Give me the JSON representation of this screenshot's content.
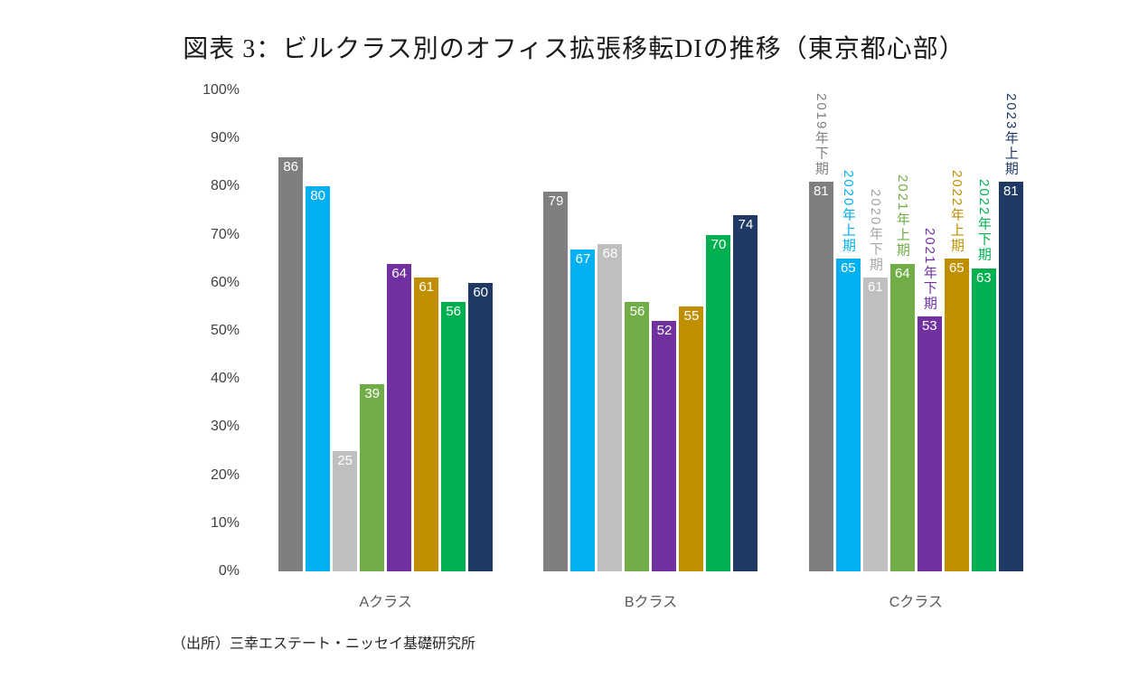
{
  "title": "図表 3：ビルクラス別のオフィス拡張移転DIの推移（東京都心部）",
  "source": "（出所）三幸エステート・ニッセイ基礎研究所",
  "chart_data": {
    "type": "bar",
    "title": "図表 3：ビルクラス別のオフィス拡張移転DIの推移（東京都心部）",
    "xlabel": "",
    "ylabel": "",
    "ylim": [
      0,
      100
    ],
    "grid": false,
    "legend_position": "rotated series labels above Cクラス bars",
    "value_labels": "white, inside top of each bar",
    "y_tick_labels": [
      "100%",
      "90%",
      "80%",
      "70%",
      "60%",
      "50%",
      "40%",
      "30%",
      "20%",
      "10%",
      "0%"
    ],
    "categories": [
      "Aクラス",
      "Bクラス",
      "Cクラス"
    ],
    "series_label_category": "Cクラス",
    "series": [
      {
        "name": "2019年下期",
        "color": "#7F7F7F",
        "label_color": "#7F7F7F",
        "values": [
          86,
          79,
          81
        ]
      },
      {
        "name": "2020年上期",
        "color": "#00B0F0",
        "label_color": "#00B0F0",
        "values": [
          80,
          67,
          65
        ]
      },
      {
        "name": "2020年下期",
        "color": "#BFBFBF",
        "label_color": "#A6A6A6",
        "values": [
          25,
          68,
          61
        ]
      },
      {
        "name": "2021年上期",
        "color": "#70AD47",
        "label_color": "#70AD47",
        "values": [
          39,
          56,
          64
        ]
      },
      {
        "name": "2021年下期",
        "color": "#7030A0",
        "label_color": "#7030A0",
        "values": [
          64,
          52,
          53
        ]
      },
      {
        "name": "2022年上期",
        "color": "#BF8F00",
        "label_color": "#BF8F00",
        "values": [
          61,
          55,
          65
        ]
      },
      {
        "name": "2022年下期",
        "color": "#00B050",
        "label_color": "#00B050",
        "values": [
          56,
          70,
          63
        ]
      },
      {
        "name": "2023年上期",
        "color": "#1F3864",
        "label_color": "#1F3864",
        "values": [
          60,
          74,
          81
        ]
      }
    ]
  }
}
